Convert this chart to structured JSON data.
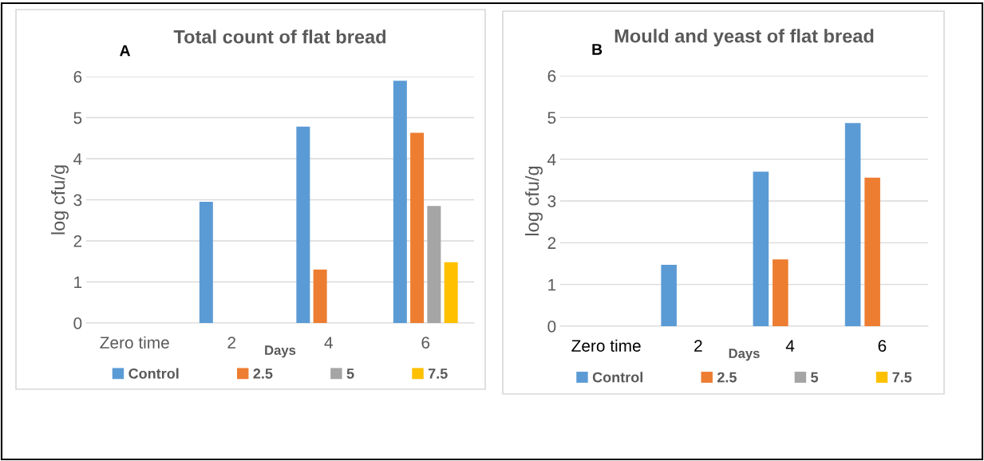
{
  "chart_data": [
    {
      "type": "bar",
      "title": "Total count of flat bread",
      "annotations": [
        "A"
      ],
      "xlabel": "Days",
      "ylabel": "log cfu/g",
      "categories": [
        "Zero time",
        "2",
        "4",
        "6"
      ],
      "series": [
        {
          "name": "Control",
          "color": "#5b9bd5",
          "values": [
            0,
            2.95,
            4.78,
            5.9
          ]
        },
        {
          "name": "2.5",
          "color": "#ed7d31",
          "values": [
            0,
            0,
            1.3,
            4.63
          ]
        },
        {
          "name": "5",
          "color": "#a5a5a5",
          "values": [
            0,
            0,
            0,
            2.85
          ]
        },
        {
          "name": "7.5",
          "color": "#ffc000",
          "values": [
            0,
            0,
            0,
            1.48
          ]
        }
      ],
      "ylim": [
        0,
        6
      ],
      "yticks": [
        0,
        1,
        2,
        3,
        4,
        5,
        6
      ],
      "grid": "y",
      "legend": "bottom"
    },
    {
      "type": "bar",
      "title": "Mould and yeast of flat bread",
      "annotations": [
        "B"
      ],
      "xlabel": "Days",
      "ylabel": "log cfu/g",
      "categories": [
        "Zero time",
        "2",
        "4",
        "6"
      ],
      "series": [
        {
          "name": "Control",
          "color": "#5b9bd5",
          "values": [
            0,
            1.47,
            3.7,
            4.87
          ]
        },
        {
          "name": "2.5",
          "color": "#ed7d31",
          "values": [
            0,
            0,
            1.6,
            3.56
          ]
        },
        {
          "name": "5",
          "color": "#a5a5a5",
          "values": [
            0,
            0,
            0,
            0
          ]
        },
        {
          "name": "7.5",
          "color": "#ffc000",
          "values": [
            0,
            0,
            0,
            0
          ]
        }
      ],
      "ylim": [
        0,
        6
      ],
      "yticks": [
        0,
        1,
        2,
        3,
        4,
        5,
        6
      ],
      "grid": "y",
      "legend": "bottom"
    }
  ]
}
